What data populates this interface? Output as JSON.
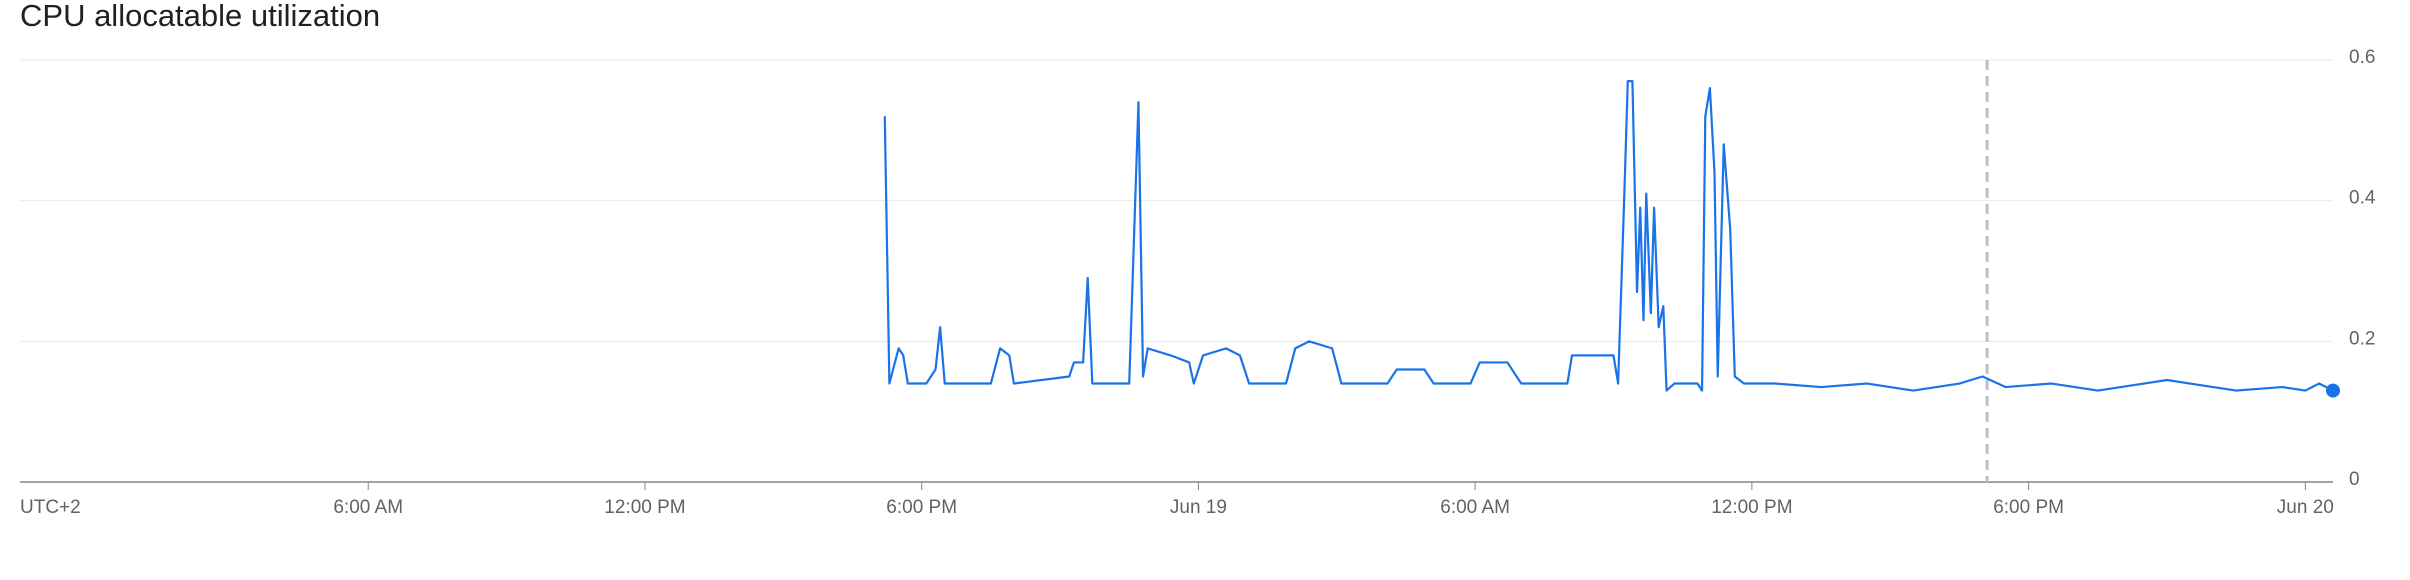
{
  "chart_data": {
    "type": "line",
    "title": "CPU allocatable utilization",
    "timezone": "UTC+2",
    "xlim": [
      -1.55,
      48.6
    ],
    "ylim": [
      0,
      0.6
    ],
    "xticks": [
      {
        "value": 6,
        "label": "6:00 AM"
      },
      {
        "value": 12,
        "label": "12:00 PM"
      },
      {
        "value": 18,
        "label": "6:00 PM"
      },
      {
        "value": 24,
        "label": "Jun 19"
      },
      {
        "value": 30,
        "label": "6:00 AM"
      },
      {
        "value": 36,
        "label": "12:00 PM"
      },
      {
        "value": 42,
        "label": "6:00 PM"
      },
      {
        "value": 48,
        "label": "Jun 20"
      }
    ],
    "yticks": [
      0,
      0.2,
      0.4,
      0.6
    ],
    "grid": true,
    "vline": 41.1,
    "series": [
      {
        "color": "#1a73e8",
        "x": [
          17.2,
          17.3,
          17.5,
          17.6,
          17.7,
          18.1,
          18.3,
          18.4,
          18.5,
          19.5,
          19.7,
          19.9,
          20.0,
          21.2,
          21.3,
          21.5,
          21.6,
          21.7,
          22.5,
          22.7,
          22.8,
          22.9,
          23.4,
          23.8,
          23.9,
          24.1,
          24.6,
          24.9,
          25.1,
          25.9,
          26.1,
          26.4,
          26.9,
          27.1,
          28.1,
          28.3,
          28.9,
          29.1,
          29.9,
          30.1,
          30.7,
          31.0,
          32.0,
          32.1,
          33.0,
          33.1,
          33.24,
          33.31,
          33.41,
          33.51,
          33.58,
          33.65,
          33.71,
          33.81,
          33.88,
          33.98,
          34.08,
          34.15,
          34.32,
          34.82,
          34.92,
          34.99,
          35.09,
          35.19,
          35.26,
          35.39,
          35.53,
          35.63,
          35.83,
          36.5,
          37.5,
          38.5,
          39.5,
          40.5,
          41.0,
          41.5,
          42.5,
          43.5,
          44.5,
          45.0,
          45.5,
          46.5,
          47.5,
          48.0,
          48.3,
          48.6
        ],
        "values": [
          0.52,
          0.14,
          0.19,
          0.18,
          0.14,
          0.14,
          0.16,
          0.22,
          0.14,
          0.14,
          0.19,
          0.18,
          0.14,
          0.15,
          0.17,
          0.17,
          0.29,
          0.14,
          0.14,
          0.54,
          0.15,
          0.19,
          0.18,
          0.17,
          0.14,
          0.18,
          0.19,
          0.18,
          0.14,
          0.14,
          0.19,
          0.2,
          0.19,
          0.14,
          0.14,
          0.16,
          0.16,
          0.14,
          0.14,
          0.17,
          0.17,
          0.14,
          0.14,
          0.18,
          0.18,
          0.14,
          0.42,
          0.57,
          0.57,
          0.27,
          0.39,
          0.23,
          0.41,
          0.24,
          0.39,
          0.22,
          0.25,
          0.13,
          0.14,
          0.14,
          0.13,
          0.52,
          0.56,
          0.44,
          0.15,
          0.48,
          0.36,
          0.15,
          0.14,
          0.14,
          0.135,
          0.14,
          0.13,
          0.14,
          0.15,
          0.135,
          0.14,
          0.13,
          0.14,
          0.145,
          0.14,
          0.13,
          0.135,
          0.13,
          0.14,
          0.13
        ]
      }
    ]
  }
}
